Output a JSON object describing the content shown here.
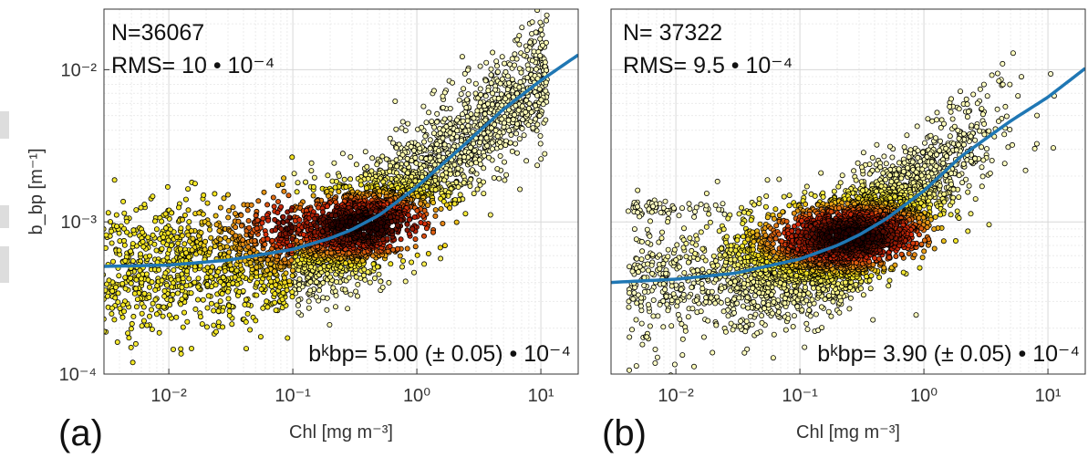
{
  "colors": {
    "fit_line": "#1f77b4",
    "marker_edge": "#000000",
    "density_low": "#ffffcc",
    "density_mid": "#f2e51f",
    "density_high": "#d62a0a",
    "density_peak": "#2a0000"
  },
  "chart_data": [
    {
      "type": "scatter",
      "panel_label": "(a)",
      "xlabel": "Chl [mg m⁻³]",
      "ylabel": "b_bp [m⁻¹]",
      "xscale": "log",
      "yscale": "log",
      "xlim": [
        0.003,
        20
      ],
      "ylim": [
        0.0001,
        0.025
      ],
      "xticks": [
        {
          "value": 0.01,
          "label": "10⁻²"
        },
        {
          "value": 0.1,
          "label": "10⁻¹"
        },
        {
          "value": 1,
          "label": "10⁰"
        },
        {
          "value": 10,
          "label": "10¹"
        }
      ],
      "yticks": [
        {
          "value": 0.0001,
          "label": "10⁻⁴"
        },
        {
          "value": 0.001,
          "label": "10⁻³"
        },
        {
          "value": 0.01,
          "label": "10⁻²"
        }
      ],
      "grid": true,
      "annotations": {
        "n_text": "N=36067",
        "rms_text": "RMS= 10 • 10⁻⁴",
        "bk_text": "bᵏbp= 5.00 (± 0.05) • 10⁻⁴"
      },
      "n_points": 36067,
      "bk": 0.0005,
      "fit_curve": {
        "x": [
          0.003,
          0.01,
          0.03,
          0.1,
          0.2,
          0.3,
          0.5,
          1,
          2,
          5,
          10,
          20
        ],
        "y": [
          0.00051,
          0.00052,
          0.00056,
          0.00066,
          0.00078,
          0.00089,
          0.00111,
          0.0017,
          0.0028,
          0.0055,
          0.0085,
          0.0125
        ]
      },
      "density_center": {
        "x": 0.35,
        "y": 0.00095
      }
    },
    {
      "type": "scatter",
      "panel_label": "(b)",
      "xlabel": "Chl [mg m⁻³]",
      "xscale": "log",
      "yscale": "log",
      "xlim": [
        0.003,
        20
      ],
      "ylim": [
        0.0001,
        0.025
      ],
      "xticks": [
        {
          "value": 0.01,
          "label": "10⁻²"
        },
        {
          "value": 0.1,
          "label": "10⁻¹"
        },
        {
          "value": 1,
          "label": "10⁰"
        },
        {
          "value": 10,
          "label": "10¹"
        }
      ],
      "grid": true,
      "annotations": {
        "n_text": "N= 37322",
        "rms_text": "RMS= 9.5 • 10⁻⁴",
        "bk_text": "bᵏbp= 3.90 (± 0.05) • 10⁻⁴"
      },
      "n_points": 37322,
      "bk": 0.00039,
      "fit_curve": {
        "x": [
          0.003,
          0.01,
          0.03,
          0.1,
          0.2,
          0.3,
          0.5,
          1,
          2,
          5,
          10,
          20
        ],
        "y": [
          0.0004,
          0.00042,
          0.00046,
          0.00057,
          0.0007,
          0.00082,
          0.00105,
          0.0016,
          0.0027,
          0.0046,
          0.0066,
          0.0102
        ]
      },
      "density_center": {
        "x": 0.25,
        "y": 0.0008
      }
    }
  ]
}
